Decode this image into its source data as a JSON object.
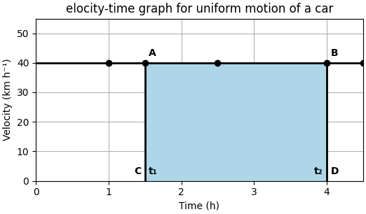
{
  "chart_data": {
    "type": "line",
    "title": "elocity-time graph for uniform motion of a car",
    "x_label": "Time (h)",
    "y_label": "Velocity (km h⁻¹)",
    "xlim": [
      0,
      4.5
    ],
    "ylim": [
      0,
      55
    ],
    "xticks": [
      0,
      1,
      2,
      3,
      4
    ],
    "yticks": [
      0,
      10,
      20,
      30,
      40,
      50
    ],
    "grid": true,
    "series": [
      {
        "type": "line",
        "x": [
          0,
          4.5
        ],
        "values": [
          40,
          40
        ],
        "color": "#000000"
      },
      {
        "type": "scatter",
        "x": [
          1.0,
          1.5,
          2.5,
          4.0,
          4.5
        ],
        "values": [
          40,
          40,
          40,
          40,
          40
        ],
        "color": "#000000",
        "marker": "o"
      }
    ],
    "shaded_area": {
      "x": [
        1.5,
        4.0
      ],
      "values": [
        40,
        40
      ],
      "color": "#aed6e8"
    },
    "vertical_lines": {
      "x": [
        1.5,
        4.0
      ],
      "values": [
        40,
        40
      ],
      "color": "#000000"
    },
    "annotations": [
      {
        "text": "A",
        "x": 1.5,
        "y": 40
      },
      {
        "text": "B",
        "x": 4.0,
        "y": 40
      },
      {
        "text": "C",
        "x": 1.5,
        "y": 0
      },
      {
        "text": "t₁",
        "x": 1.5,
        "y": 0
      },
      {
        "text": "t₂",
        "x": 4.0,
        "y": 0
      },
      {
        "text": "D",
        "x": 4.0,
        "y": 0
      }
    ]
  }
}
